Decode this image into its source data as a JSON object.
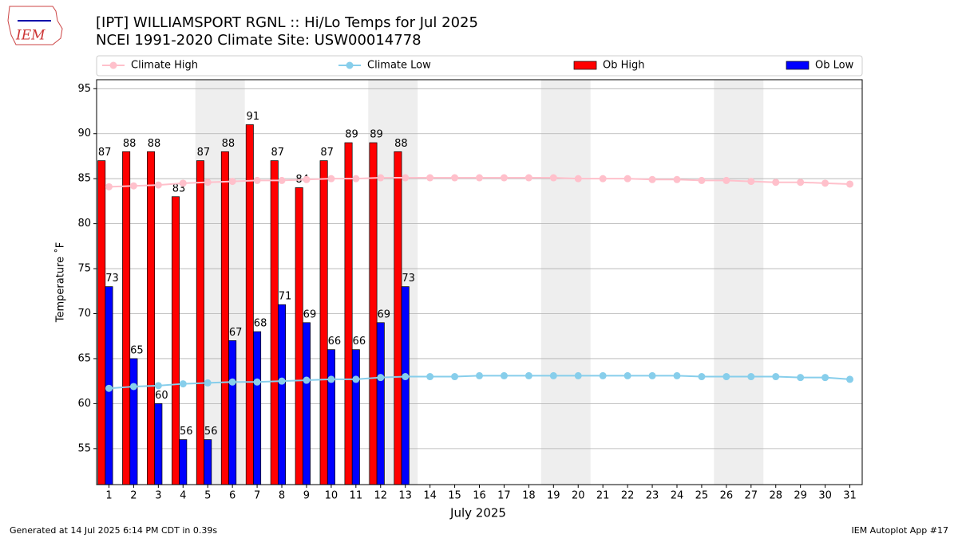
{
  "chart_data": {
    "type": "bar",
    "title": "[IPT] WILLIAMSPORT RGNL :: Hi/Lo Temps for Jul 2025",
    "subtitle": "NCEI 1991-2020 Climate Site: USW00014778",
    "xlabel": "July 2025",
    "ylabel": "Temperature ˚F",
    "logo_text": "IEM",
    "footer_left": "Generated at 14 Jul 2025 6:14 PM CDT in 0.39s",
    "footer_right": "IEM Autoplot App #17",
    "x": [
      1,
      2,
      3,
      4,
      5,
      6,
      7,
      8,
      9,
      10,
      11,
      12,
      13,
      14,
      15,
      16,
      17,
      18,
      19,
      20,
      21,
      22,
      23,
      24,
      25,
      26,
      27,
      28,
      29,
      30,
      31
    ],
    "xlim": [
      0.5,
      31.5
    ],
    "xticks": [
      1,
      2,
      3,
      4,
      5,
      6,
      7,
      8,
      9,
      10,
      11,
      12,
      13,
      14,
      15,
      16,
      17,
      18,
      19,
      20,
      21,
      22,
      23,
      24,
      25,
      26,
      27,
      28,
      29,
      30,
      31
    ],
    "ylim": [
      51,
      96
    ],
    "yticks": [
      55,
      60,
      65,
      70,
      75,
      80,
      85,
      90,
      95
    ],
    "grid": true,
    "shaded_ranges": [
      [
        4.5,
        6.5
      ],
      [
        11.5,
        13.5
      ],
      [
        18.5,
        20.5
      ],
      [
        25.5,
        27.5
      ]
    ],
    "shade_color": "#eeeeee",
    "series": [
      {
        "name": "Climate High",
        "kind": "line",
        "color": "#ffc0cb",
        "values": [
          84.1,
          84.2,
          84.3,
          84.5,
          84.6,
          84.7,
          84.8,
          84.8,
          84.9,
          85.0,
          85.0,
          85.1,
          85.1,
          85.1,
          85.1,
          85.1,
          85.1,
          85.1,
          85.1,
          85.0,
          85.0,
          85.0,
          84.9,
          84.9,
          84.8,
          84.8,
          84.7,
          84.6,
          84.6,
          84.5,
          84.4
        ]
      },
      {
        "name": "Climate Low",
        "kind": "line",
        "color": "#87ceeb",
        "values": [
          61.7,
          61.9,
          62.0,
          62.2,
          62.3,
          62.4,
          62.4,
          62.5,
          62.6,
          62.7,
          62.7,
          62.9,
          63.0,
          63.0,
          63.0,
          63.1,
          63.1,
          63.1,
          63.1,
          63.1,
          63.1,
          63.1,
          63.1,
          63.1,
          63.0,
          63.0,
          63.0,
          63.0,
          62.9,
          62.9,
          62.7
        ]
      },
      {
        "name": "Ob High",
        "kind": "bar",
        "color": "#ff0000",
        "values": [
          87,
          88,
          88,
          83,
          87,
          88,
          91,
          87,
          84,
          87,
          89,
          89,
          88,
          null,
          null,
          null,
          null,
          null,
          null,
          null,
          null,
          null,
          null,
          null,
          null,
          null,
          null,
          null,
          null,
          null,
          null
        ]
      },
      {
        "name": "Ob Low",
        "kind": "bar",
        "color": "#0000ff",
        "values": [
          73,
          65,
          60,
          56,
          56,
          67,
          68,
          71,
          69,
          66,
          66,
          69,
          73,
          null,
          null,
          null,
          null,
          null,
          null,
          null,
          null,
          null,
          null,
          null,
          null,
          null,
          null,
          null,
          null,
          null,
          null
        ]
      }
    ]
  }
}
